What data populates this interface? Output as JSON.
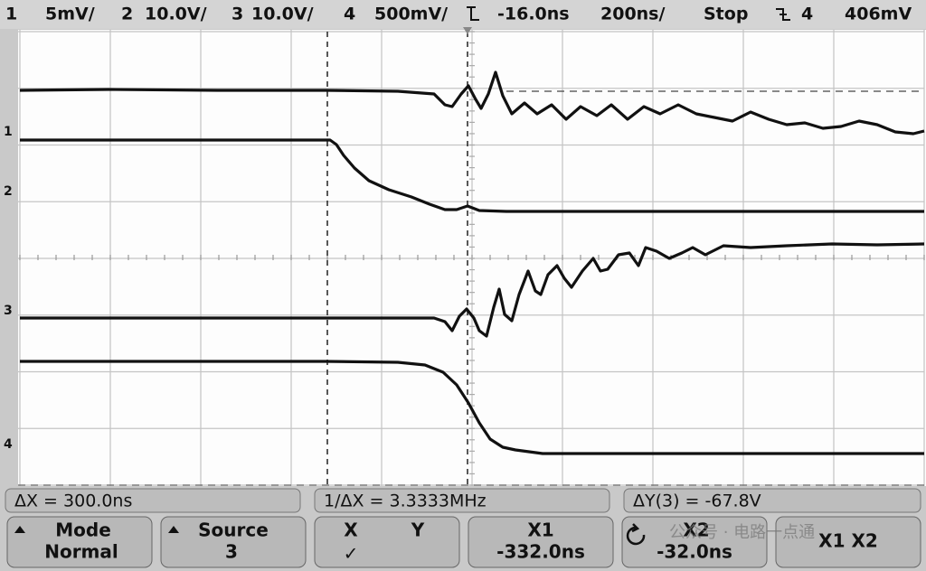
{
  "status_bar": {
    "ch1_num": "1",
    "ch1_scale": "5mV/",
    "ch2_num": "2",
    "ch2_scale": "10.0V/",
    "ch3_num": "3",
    "ch3_scale": "10.0V/",
    "ch4_num": "4",
    "ch4_scale": "500mV/",
    "delay": "-16.0ns",
    "timebase": "200ns/",
    "run_state": "Stop",
    "trigger_source": "4",
    "trigger_level": "406mV"
  },
  "channel_markers": [
    "1",
    "2",
    "3",
    "4"
  ],
  "measurements": [
    "ΔX = 300.0ns",
    "1/ΔX = 3.3333MHz",
    "ΔY(3) = -67.8V"
  ],
  "softkeys": [
    [
      "Mode",
      "Normal"
    ],
    [
      "Source",
      "3"
    ],
    [
      "X",
      "Y",
      "✓"
    ],
    [
      "X1",
      "-332.0ns"
    ],
    [
      "X2",
      "-32.0ns"
    ],
    [
      "X1 X2"
    ]
  ],
  "watermark": "公众号 · 电路一点通"
}
